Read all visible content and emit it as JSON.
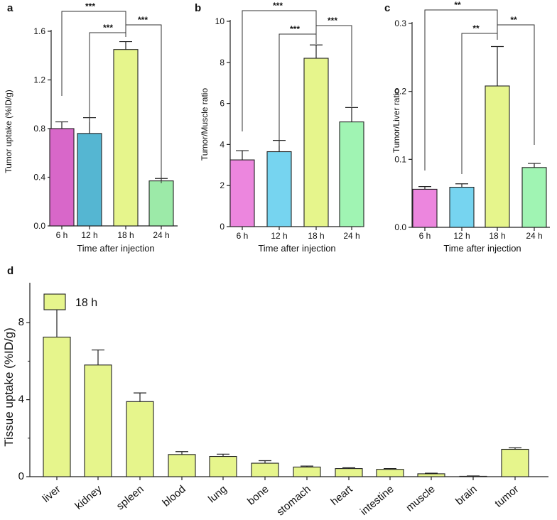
{
  "chart_data": [
    {
      "panel": "a",
      "type": "bar",
      "categories": [
        "6 h",
        "12 h",
        "18 h",
        "24 h"
      ],
      "values": [
        0.8,
        0.76,
        1.45,
        0.37
      ],
      "errors": [
        0.055,
        0.13,
        0.065,
        0.02
      ],
      "colors": [
        "#d867c9",
        "#55b6d2",
        "#e6f58c",
        "#9ceaa8"
      ],
      "xlabel": "Time after injection",
      "ylabel": "Tumor uptake (%ID/g)",
      "ylim": [
        0,
        1.6
      ],
      "yticks": [
        "0.0",
        "0.4",
        "0.8",
        "1.2",
        "1.6"
      ],
      "grid": false,
      "significance": [
        {
          "from": "6 h",
          "to": "18 h",
          "label": "***"
        },
        {
          "from": "12 h",
          "to": "18 h",
          "label": "***"
        },
        {
          "from": "18 h",
          "to": "24 h",
          "label": "***"
        }
      ]
    },
    {
      "panel": "b",
      "type": "bar",
      "categories": [
        "6 h",
        "12 h",
        "18 h",
        "24 h"
      ],
      "values": [
        3.25,
        3.65,
        8.2,
        5.1
      ],
      "errors": [
        0.45,
        0.55,
        0.65,
        0.7
      ],
      "colors": [
        "#ec86de",
        "#76d4f0",
        "#e6f58c",
        "#a0f4b3"
      ],
      "xlabel": "Time after injection",
      "ylabel": "Tumor/Muscle ratio",
      "ylim": [
        0,
        10
      ],
      "yticks": [
        "0",
        "2",
        "4",
        "6",
        "8",
        "10"
      ],
      "grid": false,
      "significance": [
        {
          "from": "6 h",
          "to": "18 h",
          "label": "***"
        },
        {
          "from": "12 h",
          "to": "18 h",
          "label": "***"
        },
        {
          "from": "18 h",
          "to": "24 h",
          "label": "***"
        }
      ]
    },
    {
      "panel": "c",
      "type": "bar",
      "categories": [
        "6 h",
        "12 h",
        "18 h",
        "24 h"
      ],
      "values": [
        0.056,
        0.059,
        0.208,
        0.088
      ],
      "errors": [
        0.004,
        0.005,
        0.058,
        0.006
      ],
      "colors": [
        "#ec86de",
        "#76d4f0",
        "#e6f58c",
        "#a0f4b3"
      ],
      "xlabel": "Time after injection",
      "ylabel": "Tumor/Liver ratio",
      "ylim": [
        0,
        0.3
      ],
      "yticks": [
        "0.0",
        "0.1",
        "0.2",
        "0.3"
      ],
      "grid": false,
      "significance": [
        {
          "from": "6 h",
          "to": "18 h",
          "label": "**"
        },
        {
          "from": "12 h",
          "to": "18 h",
          "label": "**"
        },
        {
          "from": "18 h",
          "to": "24 h",
          "label": "**"
        }
      ]
    },
    {
      "panel": "d",
      "type": "bar",
      "categories": [
        "liver",
        "kidney",
        "spleen",
        "blood",
        "lung",
        "bone",
        "stomach",
        "heart",
        "intestine",
        "muscle",
        "brain",
        "tumor"
      ],
      "values": [
        7.25,
        5.8,
        3.9,
        1.15,
        1.05,
        0.7,
        0.5,
        0.42,
        0.38,
        0.15,
        0.02,
        1.42
      ],
      "errors": [
        1.75,
        0.78,
        0.45,
        0.15,
        0.12,
        0.13,
        0.05,
        0.04,
        0.04,
        0.03,
        0.02,
        0.08
      ],
      "series": [
        {
          "name": "18 h",
          "color": "#e6f58c"
        }
      ],
      "xlabel": "",
      "ylabel": "Tissue uptake (%ID/g)",
      "ylim": [
        0,
        10
      ],
      "yticks": [
        "0",
        "4",
        "8"
      ],
      "legend": "top-left",
      "grid": false
    }
  ]
}
